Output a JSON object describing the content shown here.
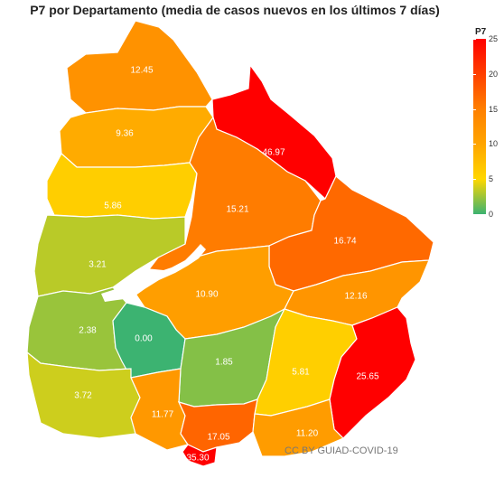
{
  "title": "P7 por Departamento (media de casos nuevos en los últimos 7 días)",
  "legend": {
    "title": "P7",
    "ticks": [
      "25",
      "20",
      "15",
      "10",
      "5",
      "0"
    ],
    "colors": [
      "#3cb371",
      "#ffd700",
      "#ffa500",
      "#ff7f00",
      "#ff3f00",
      "#ff0000"
    ]
  },
  "credit": "CC BY GUIAD-COVID-19",
  "departments": [
    {
      "id": "artigas",
      "label": "12.45",
      "value": 12.45
    },
    {
      "id": "salto",
      "label": "9.36",
      "value": 9.36
    },
    {
      "id": "rivera",
      "label": "46.97",
      "value": 46.97
    },
    {
      "id": "paysandu",
      "label": "5.86",
      "value": 5.86
    },
    {
      "id": "tacuarembo",
      "label": "15.21",
      "value": 15.21
    },
    {
      "id": "cerro-largo",
      "label": "16.74",
      "value": 16.74
    },
    {
      "id": "rio-negro",
      "label": "3.21",
      "value": 3.21
    },
    {
      "id": "durazno",
      "label": "10.90",
      "value": 10.9
    },
    {
      "id": "treinta-y-tres",
      "label": "12.16",
      "value": 12.16
    },
    {
      "id": "soriano",
      "label": "2.38",
      "value": 2.38
    },
    {
      "id": "flores",
      "label": "0.00",
      "value": 0.0
    },
    {
      "id": "florida",
      "label": "1.85",
      "value": 1.85
    },
    {
      "id": "lavalleja",
      "label": "5.81",
      "value": 5.81
    },
    {
      "id": "rocha",
      "label": "25.65",
      "value": 25.65
    },
    {
      "id": "colonia",
      "label": "3.72",
      "value": 3.72
    },
    {
      "id": "san-jose",
      "label": "11.77",
      "value": 11.77
    },
    {
      "id": "canelones",
      "label": "17.05",
      "value": 17.05
    },
    {
      "id": "maldonado",
      "label": "11.20",
      "value": 11.2
    },
    {
      "id": "montevideo",
      "label": "35.30",
      "value": 35.3
    }
  ]
}
